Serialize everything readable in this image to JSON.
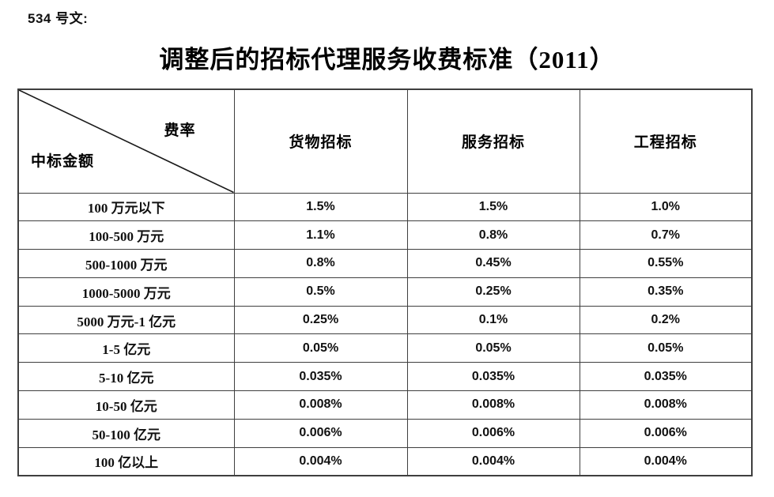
{
  "page": {
    "doc_label": "534 号文:",
    "title": "调整后的招标代理服务收费标准（2011）"
  },
  "table": {
    "corner": {
      "top_right": "费率",
      "bottom_left": "中标金额"
    },
    "columns": [
      "货物招标",
      "服务招标",
      "工程招标"
    ],
    "rows": [
      {
        "label": "100 万元以下",
        "values": [
          "1.5%",
          "1.5%",
          "1.0%"
        ]
      },
      {
        "label": "100-500 万元",
        "values": [
          "1.1%",
          "0.8%",
          "0.7%"
        ]
      },
      {
        "label": "500-1000 万元",
        "values": [
          "0.8%",
          "0.45%",
          "0.55%"
        ]
      },
      {
        "label": "1000-5000 万元",
        "values": [
          "0.5%",
          "0.25%",
          "0.35%"
        ]
      },
      {
        "label": "5000 万元-1 亿元",
        "values": [
          "0.25%",
          "0.1%",
          "0.2%"
        ]
      },
      {
        "label": "1-5 亿元",
        "values": [
          "0.05%",
          "0.05%",
          "0.05%"
        ]
      },
      {
        "label": "5-10 亿元",
        "values": [
          "0.035%",
          "0.035%",
          "0.035%"
        ]
      },
      {
        "label": "10-50 亿元",
        "values": [
          "0.008%",
          "0.008%",
          "0.008%"
        ]
      },
      {
        "label": "50-100 亿元",
        "values": [
          "0.006%",
          "0.006%",
          "0.006%"
        ]
      },
      {
        "label": "100 亿以上",
        "values": [
          "0.004%",
          "0.004%",
          "0.004%"
        ]
      }
    ]
  },
  "colors": {
    "border": "#3f3f3f",
    "text": "#111111",
    "background": "#ffffff"
  }
}
